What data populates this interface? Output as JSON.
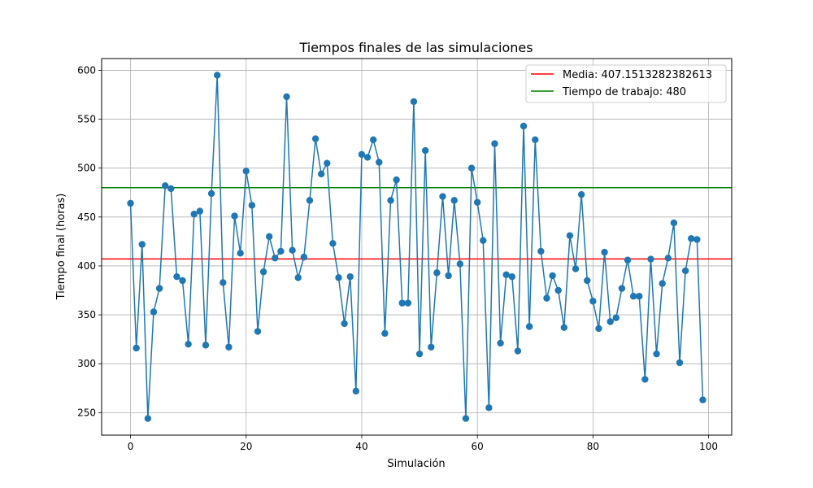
{
  "chart_data": {
    "type": "line",
    "title": "Tiempos finales de las simulaciones",
    "xlabel": "Simulación",
    "ylabel": "Tiempo final (horas)",
    "xlim": [
      -5,
      104
    ],
    "ylim": [
      227,
      612
    ],
    "xticks": [
      0,
      20,
      40,
      60,
      80,
      100
    ],
    "yticks": [
      250,
      300,
      350,
      400,
      450,
      500,
      550,
      600
    ],
    "grid": true,
    "legend_position": "top-right",
    "series": [
      {
        "type": "line-marker",
        "color": "#1f77b4",
        "x": [
          0,
          1,
          2,
          3,
          4,
          5,
          6,
          7,
          8,
          9,
          10,
          11,
          12,
          13,
          14,
          15,
          16,
          17,
          18,
          19,
          20,
          21,
          22,
          23,
          24,
          25,
          26,
          27,
          28,
          29,
          30,
          31,
          32,
          33,
          34,
          35,
          36,
          37,
          38,
          39,
          40,
          41,
          42,
          43,
          44,
          45,
          46,
          47,
          48,
          49,
          50,
          51,
          52,
          53,
          54,
          55,
          56,
          57,
          58,
          59,
          60,
          61,
          62,
          63,
          64,
          65,
          66,
          67,
          68,
          69,
          70,
          71,
          72,
          73,
          74,
          75,
          76,
          77,
          78,
          79,
          80,
          81,
          82,
          83,
          84,
          85,
          86,
          87,
          88,
          89,
          90,
          91,
          92,
          93,
          94,
          95,
          96,
          97,
          98,
          99
        ],
        "values": [
          464,
          316,
          422,
          244,
          353,
          377,
          482,
          479,
          389,
          385,
          320,
          453,
          456,
          319,
          474,
          595,
          383,
          317,
          451,
          413,
          497,
          462,
          333,
          394,
          430,
          408,
          415,
          573,
          416,
          388,
          409,
          467,
          530,
          494,
          505,
          423,
          388,
          341,
          389,
          272,
          514,
          511,
          529,
          506,
          331,
          467,
          488,
          362,
          362,
          568,
          310,
          518,
          317,
          393,
          471,
          390,
          467,
          402,
          244,
          500,
          465,
          426,
          255,
          525,
          321,
          391,
          389,
          313,
          543,
          338,
          529,
          415,
          367,
          390,
          375,
          337,
          431,
          397,
          473,
          385,
          364,
          336,
          414,
          343,
          347,
          377,
          406,
          369,
          369,
          284,
          407,
          310,
          382,
          408,
          444,
          301,
          395,
          428,
          427,
          263
        ]
      }
    ],
    "hlines": [
      {
        "name": "Media: 407.1513282382613",
        "value": 407.1513282382613,
        "color": "#ff0000"
      },
      {
        "name": "Tiempo de trabajo: 480",
        "value": 480,
        "color": "#008000"
      }
    ]
  }
}
